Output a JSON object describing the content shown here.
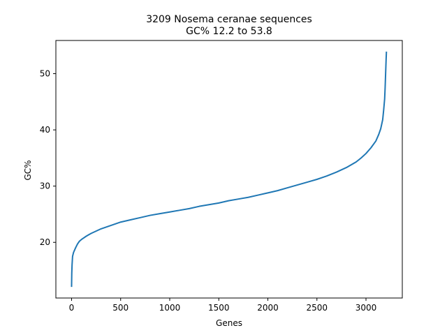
{
  "chart_data": {
    "type": "line",
    "title": "3209 Nosema ceranae sequences",
    "subtitle": "GC% 12.2 to 53.8",
    "xlabel": "Genes",
    "ylabel": "GC%",
    "xlim": [
      -160,
      3370
    ],
    "ylim": [
      10.1,
      55.9
    ],
    "xticks": [
      0,
      500,
      1000,
      1500,
      2000,
      2500,
      3000
    ],
    "xtick_labels": [
      "0",
      "500",
      "1000",
      "1500",
      "2000",
      "2500",
      "3000"
    ],
    "yticks": [
      20,
      30,
      40,
      50
    ],
    "ytick_labels": [
      "20",
      "30",
      "40",
      "50"
    ],
    "grid": false,
    "color": "#1f77b4",
    "series": [
      {
        "x": [
          0,
          2,
          5,
          10,
          20,
          40,
          60,
          80,
          100,
          150,
          200,
          300,
          400,
          500,
          600,
          700,
          800,
          900,
          1000,
          1100,
          1200,
          1300,
          1400,
          1500,
          1600,
          1700,
          1800,
          1900,
          2000,
          2100,
          2200,
          2300,
          2400,
          2500,
          2600,
          2700,
          2800,
          2900,
          2950,
          3000,
          3050,
          3100,
          3130,
          3150,
          3170,
          3180,
          3190,
          3195,
          3200,
          3205,
          3208
        ],
        "y": [
          12.2,
          14.5,
          16.0,
          17.5,
          18.2,
          19.0,
          19.7,
          20.2,
          20.5,
          21.1,
          21.6,
          22.4,
          23.0,
          23.6,
          24.0,
          24.4,
          24.8,
          25.1,
          25.4,
          25.7,
          26.0,
          26.4,
          26.7,
          27.0,
          27.4,
          27.7,
          28.0,
          28.4,
          28.8,
          29.2,
          29.7,
          30.2,
          30.7,
          31.2,
          31.8,
          32.5,
          33.3,
          34.3,
          35.0,
          35.8,
          36.8,
          38.0,
          39.2,
          40.2,
          41.8,
          43.5,
          45.5,
          47.5,
          50.0,
          52.5,
          53.8
        ]
      }
    ]
  }
}
